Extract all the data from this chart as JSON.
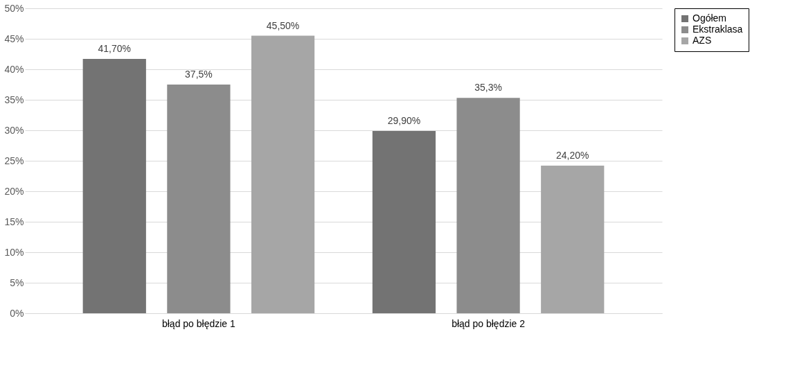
{
  "chart_data": {
    "type": "bar",
    "categories": [
      "błąd po błędzie 1",
      "błąd po błędzie 2"
    ],
    "series": [
      {
        "name": "Ogółem",
        "color": "#737373",
        "values": [
          41.7,
          29.9
        ],
        "value_labels": [
          "41,70%",
          "29,90%"
        ]
      },
      {
        "name": "Ekstraklasa",
        "color": "#8c8c8c",
        "values": [
          37.5,
          35.3
        ],
        "value_labels": [
          "37,5%",
          "35,3%"
        ]
      },
      {
        "name": "AZS",
        "color": "#a6a6a6",
        "values": [
          45.5,
          24.2
        ],
        "value_labels": [
          "45,50%",
          "24,20%"
        ]
      }
    ],
    "ylim": [
      0,
      50
    ],
    "yticks": [
      {
        "value": 0,
        "label": "0%"
      },
      {
        "value": 5,
        "label": "5%"
      },
      {
        "value": 10,
        "label": "10%"
      },
      {
        "value": 15,
        "label": "15%"
      },
      {
        "value": 20,
        "label": "20%"
      },
      {
        "value": 25,
        "label": "25%"
      },
      {
        "value": 30,
        "label": "30%"
      },
      {
        "value": 35,
        "label": "35%"
      },
      {
        "value": 40,
        "label": "40%"
      },
      {
        "value": 45,
        "label": "45%"
      },
      {
        "value": 50,
        "label": "50%"
      }
    ],
    "grid": "y",
    "legend": "right"
  }
}
